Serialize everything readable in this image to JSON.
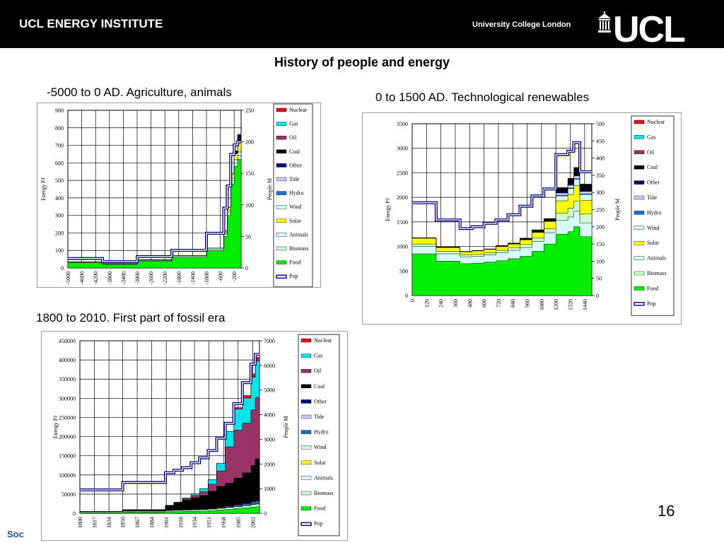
{
  "header": {
    "institute": "UCL ENERGY INSTITUTE",
    "university": "University College London",
    "logo_text": "UCL"
  },
  "title": "History of people and energy",
  "page_number": "16",
  "footer_fragment": "Soc",
  "colors": {
    "Nuclear": "#e0101a",
    "Gas": "#00e5ee",
    "Oil": "#993366",
    "Coal": "#000000",
    "Other": "#000080",
    "Tide": "#c8c8ff",
    "Hydro": "#1f6fc6",
    "Wind": "#d0fcfc",
    "Solar": "#ffff00",
    "Animals": "#d8fbfb",
    "Biomass": "#ccffcc",
    "Food": "#00ee00",
    "Pop": "#000080"
  },
  "chart_data": [
    {
      "id": "chart1",
      "subtitle": "-5000 to 0 AD. Agriculture, animals",
      "type": "area",
      "ylabel": "Energy PJ",
      "y2label": "People M",
      "ylim": [
        0,
        900
      ],
      "yticks": [
        0,
        100,
        200,
        300,
        400,
        500,
        600,
        700,
        800,
        900
      ],
      "y2lim": [
        0,
        250
      ],
      "y2ticks": [
        0,
        50,
        100,
        150,
        200,
        250
      ],
      "xlim": [
        -5000,
        0
      ],
      "xticks": [
        -5000,
        -4600,
        -4200,
        -3800,
        -3400,
        -3000,
        -2600,
        -2200,
        -1800,
        -1400,
        -1000,
        -600,
        -200
      ],
      "legend": [
        "Nuclear",
        "Gas",
        "Oil",
        "Coal",
        "Other",
        "Tide",
        "Hydro",
        "Wind",
        "Solar",
        "Animals",
        "Biomass",
        "Food",
        "Pop"
      ],
      "x": [
        -5000,
        -4000,
        -3000,
        -2000,
        -1000,
        -500,
        -400,
        -300,
        -200,
        -100
      ],
      "stack": [
        {
          "name": "Food",
          "values": [
            30,
            20,
            40,
            60,
            100,
            180,
            300,
            480,
            580,
            620
          ]
        },
        {
          "name": "Biomass",
          "values": [
            3,
            3,
            4,
            6,
            8,
            12,
            15,
            18,
            20,
            22
          ]
        },
        {
          "name": "Animals",
          "values": [
            2,
            2,
            3,
            4,
            6,
            10,
            12,
            14,
            18,
            20
          ]
        },
        {
          "name": "Wind",
          "values": [
            0,
            0,
            0,
            0,
            0,
            0,
            0,
            0,
            0,
            1
          ]
        },
        {
          "name": "Solar",
          "values": [
            0,
            0,
            0,
            0,
            0,
            10,
            20,
            25,
            35,
            60
          ]
        },
        {
          "name": "Coal",
          "values": [
            0,
            0,
            0,
            0,
            0,
            0,
            0,
            0,
            15,
            35
          ]
        },
        {
          "name": "Nuclear",
          "values": [
            0,
            0,
            0,
            0,
            0,
            0,
            0,
            0,
            0,
            5
          ]
        }
      ],
      "pop": [
        15,
        10,
        18,
        28,
        55,
        95,
        130,
        180,
        195,
        200
      ]
    },
    {
      "id": "chart2",
      "subtitle": "0 to 1500 AD. Technological renewables",
      "type": "area",
      "ylabel": "Energy PJ",
      "y2label": "People M",
      "ylim": [
        0,
        3500
      ],
      "yticks": [
        0,
        500,
        1000,
        1500,
        2000,
        2500,
        3000,
        3500
      ],
      "y2lim": [
        0,
        500
      ],
      "y2ticks": [
        0,
        50,
        100,
        150,
        200,
        250,
        300,
        350,
        400,
        450,
        500
      ],
      "xlim": [
        0,
        1500
      ],
      "xticks": [
        0,
        120,
        240,
        360,
        480,
        600,
        720,
        840,
        960,
        1080,
        1200,
        1320,
        1440
      ],
      "legend": [
        "Nuclear",
        "Gas",
        "Oil",
        "Coal",
        "Other",
        "Tide",
        "Hydro",
        "Wind",
        "Solar",
        "Animals",
        "Biomass",
        "Food",
        "Pop"
      ],
      "x": [
        0,
        200,
        400,
        500,
        600,
        700,
        800,
        900,
        1000,
        1100,
        1200,
        1300,
        1350,
        1400
      ],
      "stack": [
        {
          "name": "Food",
          "values": [
            850,
            700,
            650,
            660,
            680,
            710,
            750,
            800,
            900,
            1050,
            1250,
            1300,
            1400,
            1200
          ]
        },
        {
          "name": "Animals",
          "values": [
            150,
            150,
            140,
            140,
            150,
            160,
            170,
            180,
            200,
            230,
            280,
            300,
            320,
            280
          ]
        },
        {
          "name": "Biomass",
          "values": [
            50,
            50,
            40,
            40,
            40,
            50,
            50,
            60,
            70,
            80,
            150,
            180,
            200,
            180
          ]
        },
        {
          "name": "Solar",
          "values": [
            120,
            80,
            60,
            70,
            70,
            80,
            80,
            100,
            120,
            150,
            250,
            280,
            320,
            280
          ]
        },
        {
          "name": "Wind",
          "values": [
            0,
            0,
            0,
            0,
            0,
            0,
            0,
            0,
            0,
            0,
            100,
            120,
            130,
            120
          ]
        },
        {
          "name": "Hydro",
          "values": [
            0,
            0,
            0,
            0,
            0,
            0,
            0,
            0,
            0,
            0,
            10,
            10,
            10,
            10
          ]
        },
        {
          "name": "Tide",
          "values": [
            0,
            0,
            0,
            0,
            0,
            0,
            0,
            0,
            0,
            0,
            50,
            60,
            60,
            50
          ]
        },
        {
          "name": "Other",
          "values": [
            0,
            0,
            0,
            0,
            0,
            0,
            0,
            0,
            0,
            0,
            20,
            20,
            20,
            20
          ]
        },
        {
          "name": "Coal",
          "values": [
            10,
            10,
            10,
            10,
            10,
            20,
            20,
            30,
            50,
            60,
            90,
            120,
            150,
            130
          ]
        }
      ],
      "pop": [
        270,
        220,
        195,
        200,
        210,
        220,
        235,
        260,
        290,
        310,
        410,
        420,
        445,
        360
      ]
    },
    {
      "id": "chart3",
      "subtitle": "1800 to 2010. First part of fossil era",
      "type": "area",
      "ylabel": "Energy PJ",
      "y2label": "People M",
      "ylim": [
        0,
        450000
      ],
      "yticks": [
        0,
        50000,
        100000,
        150000,
        200000,
        250000,
        300000,
        350000,
        400000,
        450000
      ],
      "y2lim": [
        0,
        7000
      ],
      "y2ticks": [
        0,
        1000,
        2000,
        3000,
        4000,
        5000,
        6000,
        7000
      ],
      "xlim": [
        1800,
        2010
      ],
      "xticks": [
        1800,
        1817,
        1834,
        1850,
        1867,
        1884,
        1901,
        1918,
        1934,
        1951,
        1968,
        1985,
        2002
      ],
      "legend": [
        "Nuclear",
        "Gas",
        "Oil",
        "Coal",
        "Other",
        "Tide",
        "Hydro",
        "Wind",
        "Solar",
        "Animals",
        "Biomass",
        "Food",
        "Pop"
      ],
      "x": [
        1800,
        1850,
        1900,
        1910,
        1920,
        1930,
        1940,
        1950,
        1960,
        1970,
        1980,
        1990,
        2000,
        2005
      ],
      "stack": [
        {
          "name": "Food",
          "values": [
            2000,
            3000,
            4000,
            4500,
            5000,
            5500,
            6000,
            7000,
            8500,
            10000,
            12000,
            14000,
            16000,
            17000
          ]
        },
        {
          "name": "Biomass",
          "values": [
            2000,
            2500,
            3000,
            3200,
            3400,
            3600,
            3800,
            4000,
            4500,
            5000,
            5500,
            6000,
            6500,
            7000
          ]
        },
        {
          "name": "Animals",
          "values": [
            500,
            700,
            900,
            900,
            900,
            900,
            800,
            700,
            600,
            500,
            400,
            400,
            400,
            400
          ]
        },
        {
          "name": "Solar",
          "values": [
            0,
            0,
            0,
            0,
            0,
            0,
            0,
            0,
            0,
            0,
            0,
            0,
            1000,
            1500
          ]
        },
        {
          "name": "Hydro",
          "values": [
            0,
            0,
            0,
            100,
            300,
            500,
            800,
            1200,
            2000,
            3000,
            4000,
            5000,
            6000,
            6500
          ]
        },
        {
          "name": "Coal",
          "values": [
            500,
            3000,
            12000,
            18000,
            25000,
            30000,
            35000,
            45000,
            55000,
            60000,
            70000,
            80000,
            95000,
            110000
          ]
        },
        {
          "name": "Oil",
          "values": [
            0,
            0,
            500,
            1500,
            3000,
            6000,
            10000,
            18000,
            40000,
            95000,
            125000,
            130000,
            145000,
            160000
          ]
        },
        {
          "name": "Gas",
          "values": [
            0,
            0,
            500,
            1000,
            2000,
            4000,
            8000,
            12000,
            20000,
            40000,
            55000,
            65000,
            85000,
            95000
          ]
        },
        {
          "name": "Nuclear",
          "values": [
            0,
            0,
            0,
            0,
            0,
            0,
            0,
            0,
            0,
            500,
            4000,
            7000,
            9000,
            9500
          ]
        }
      ],
      "pop": [
        950,
        1250,
        1650,
        1750,
        1850,
        2050,
        2250,
        2550,
        3050,
        3650,
        4450,
        5300,
        6050,
        6450
      ]
    }
  ]
}
